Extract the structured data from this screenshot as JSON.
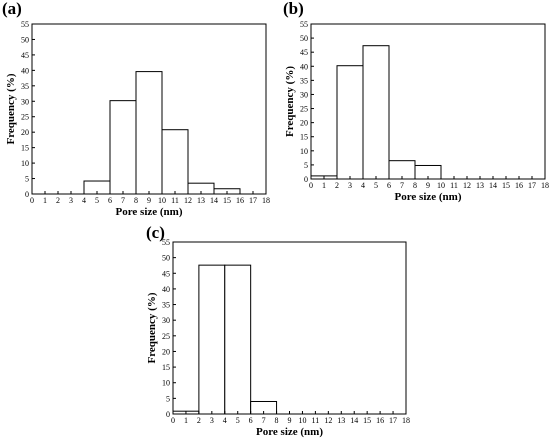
{
  "chart_data": [
    {
      "type": "bar",
      "panel_label": "(a)",
      "xlabel": "Pore size (nm)",
      "ylabel": "Frequency (%)",
      "xlim": [
        0,
        18
      ],
      "ylim": [
        0,
        55
      ],
      "xticks": [
        0,
        1,
        2,
        3,
        4,
        5,
        6,
        7,
        8,
        9,
        10,
        11,
        12,
        13,
        14,
        15,
        16,
        17,
        18
      ],
      "yticks": [
        0,
        5,
        10,
        15,
        20,
        25,
        30,
        35,
        40,
        45,
        50,
        55
      ],
      "bin_width": 2,
      "bins": [
        {
          "start": 4,
          "end": 6,
          "value": 4.2
        },
        {
          "start": 6,
          "end": 8,
          "value": 30.2
        },
        {
          "start": 8,
          "end": 10,
          "value": 39.6
        },
        {
          "start": 10,
          "end": 12,
          "value": 20.8
        },
        {
          "start": 12,
          "end": 14,
          "value": 3.5
        },
        {
          "start": 14,
          "end": 16,
          "value": 1.7
        }
      ]
    },
    {
      "type": "bar",
      "panel_label": "(b)",
      "xlabel": "Pore size (nm)",
      "ylabel": "Frequency (%)",
      "xlim": [
        0,
        18
      ],
      "ylim": [
        0,
        55
      ],
      "xticks": [
        0,
        1,
        2,
        3,
        4,
        5,
        6,
        7,
        8,
        9,
        10,
        11,
        12,
        13,
        14,
        15,
        16,
        17,
        18
      ],
      "yticks": [
        0,
        5,
        10,
        15,
        20,
        25,
        30,
        35,
        40,
        45,
        50,
        55
      ],
      "bin_width": 2,
      "bins": [
        {
          "start": 0,
          "end": 2,
          "value": 1.1
        },
        {
          "start": 2,
          "end": 4,
          "value": 40.2
        },
        {
          "start": 4,
          "end": 6,
          "value": 47.3
        },
        {
          "start": 6,
          "end": 8,
          "value": 6.5
        },
        {
          "start": 8,
          "end": 10,
          "value": 4.8
        }
      ]
    },
    {
      "type": "bar",
      "panel_label": "(c)",
      "xlabel": "Pore size (nm)",
      "ylabel": "Frequency (%)",
      "xlim": [
        0,
        18
      ],
      "ylim": [
        0,
        55
      ],
      "xticks": [
        0,
        1,
        2,
        3,
        4,
        5,
        6,
        7,
        8,
        9,
        10,
        11,
        12,
        13,
        14,
        15,
        16,
        17,
        18
      ],
      "yticks": [
        0,
        5,
        10,
        15,
        20,
        25,
        30,
        35,
        40,
        45,
        50,
        55
      ],
      "bin_width": 2,
      "bins": [
        {
          "start": 0,
          "end": 2,
          "value": 0.9
        },
        {
          "start": 2,
          "end": 4,
          "value": 47.6
        },
        {
          "start": 4,
          "end": 6,
          "value": 47.6
        },
        {
          "start": 6,
          "end": 8,
          "value": 4.0
        }
      ]
    }
  ]
}
